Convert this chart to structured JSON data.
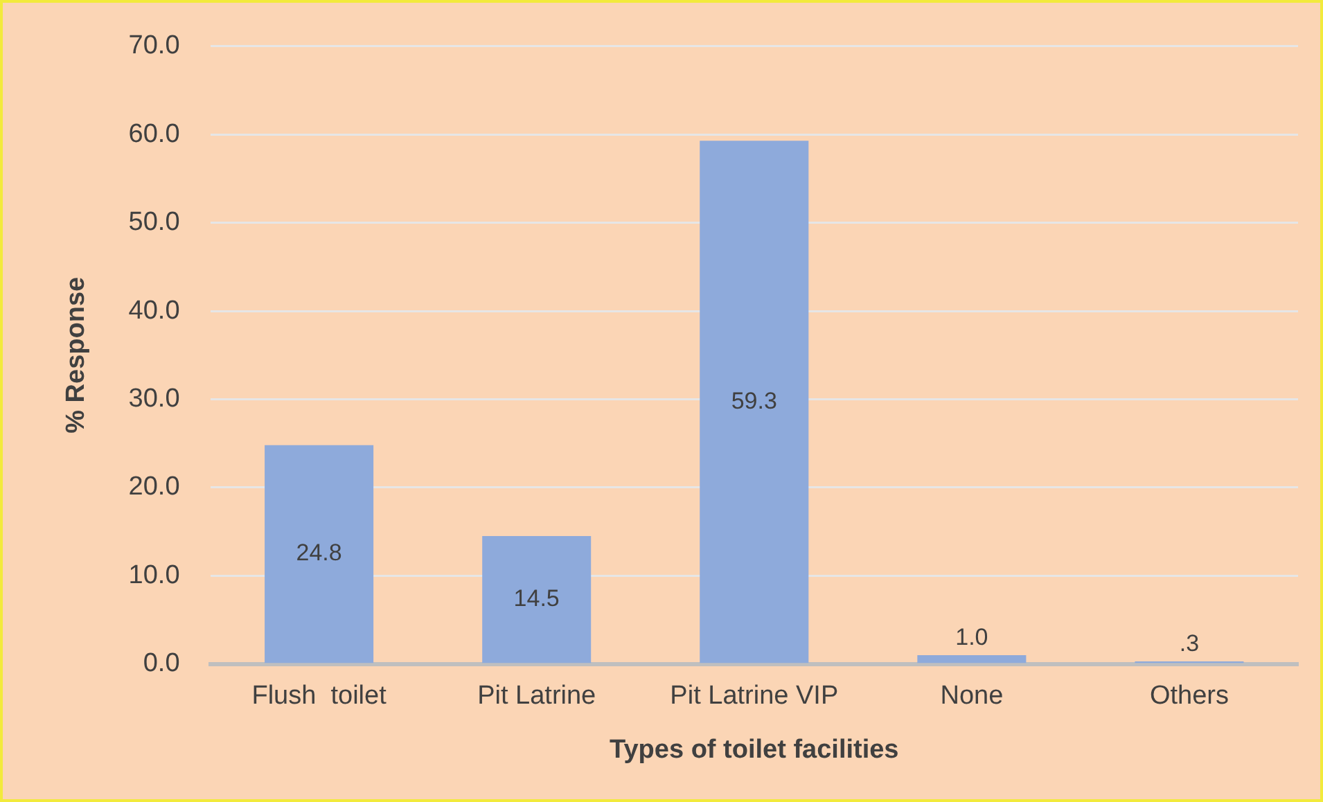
{
  "chart_data": {
    "type": "bar",
    "xlabel": "Types of toilet facilities",
    "ylabel": "% Response",
    "categories": [
      "Flush  toilet",
      "Pit Latrine",
      "Pit Latrine VIP",
      "None",
      "Others"
    ],
    "values": [
      24.8,
      14.5,
      59.3,
      1.0,
      0.3
    ],
    "value_labels": [
      "24.8",
      "14.5",
      "59.3",
      "1.0",
      ".3"
    ],
    "color": "#8eaadb",
    "ylim": [
      0,
      70
    ],
    "yticks": [
      {
        "value": 0,
        "label": "0.0"
      },
      {
        "value": 10,
        "label": "10.0"
      },
      {
        "value": 20,
        "label": "20.0"
      },
      {
        "value": 30,
        "label": "30.0"
      },
      {
        "value": 40,
        "label": "40.0"
      },
      {
        "value": 50,
        "label": "50.0"
      },
      {
        "value": 60,
        "label": "60.0"
      },
      {
        "value": 70,
        "label": "70.0"
      }
    ],
    "grid": "y",
    "legend": false
  }
}
